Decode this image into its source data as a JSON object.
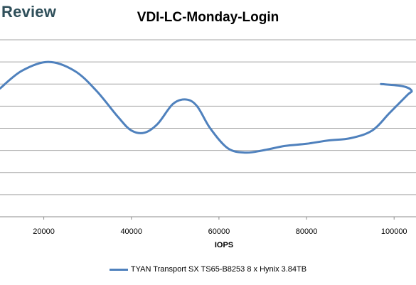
{
  "brand": {
    "text": "Review"
  },
  "chart_data": {
    "type": "line",
    "title": "VDI-LC-Monday-Login",
    "xlabel": "IOPS",
    "ylabel": "",
    "xlim": [
      10000,
      105000
    ],
    "x_ticks": [
      20000,
      40000,
      60000,
      80000,
      100000
    ],
    "ylim": [
      0,
      8
    ],
    "grid": true,
    "legend_position": "bottom",
    "series": [
      {
        "name": "TYAN Transport SX TS65-B8253 8 x Hynix 3.84TB",
        "color": "#4f81bd",
        "points": [
          [
            10000,
            5.8
          ],
          [
            15000,
            6.6
          ],
          [
            21000,
            7.0
          ],
          [
            27000,
            6.6
          ],
          [
            32000,
            5.7
          ],
          [
            37000,
            4.5
          ],
          [
            40000,
            3.9
          ],
          [
            43000,
            3.8
          ],
          [
            46000,
            4.2
          ],
          [
            49500,
            5.1
          ],
          [
            52500,
            5.3
          ],
          [
            55000,
            5.0
          ],
          [
            58000,
            4.0
          ],
          [
            62000,
            3.1
          ],
          [
            66000,
            2.9
          ],
          [
            70000,
            3.0
          ],
          [
            75000,
            3.2
          ],
          [
            80000,
            3.3
          ],
          [
            85000,
            3.45
          ],
          [
            90000,
            3.55
          ],
          [
            95000,
            3.9
          ],
          [
            99000,
            4.7
          ],
          [
            103000,
            5.5
          ],
          [
            104000,
            5.7
          ],
          [
            102000,
            5.9
          ],
          [
            97000,
            6.0
          ]
        ]
      }
    ]
  }
}
